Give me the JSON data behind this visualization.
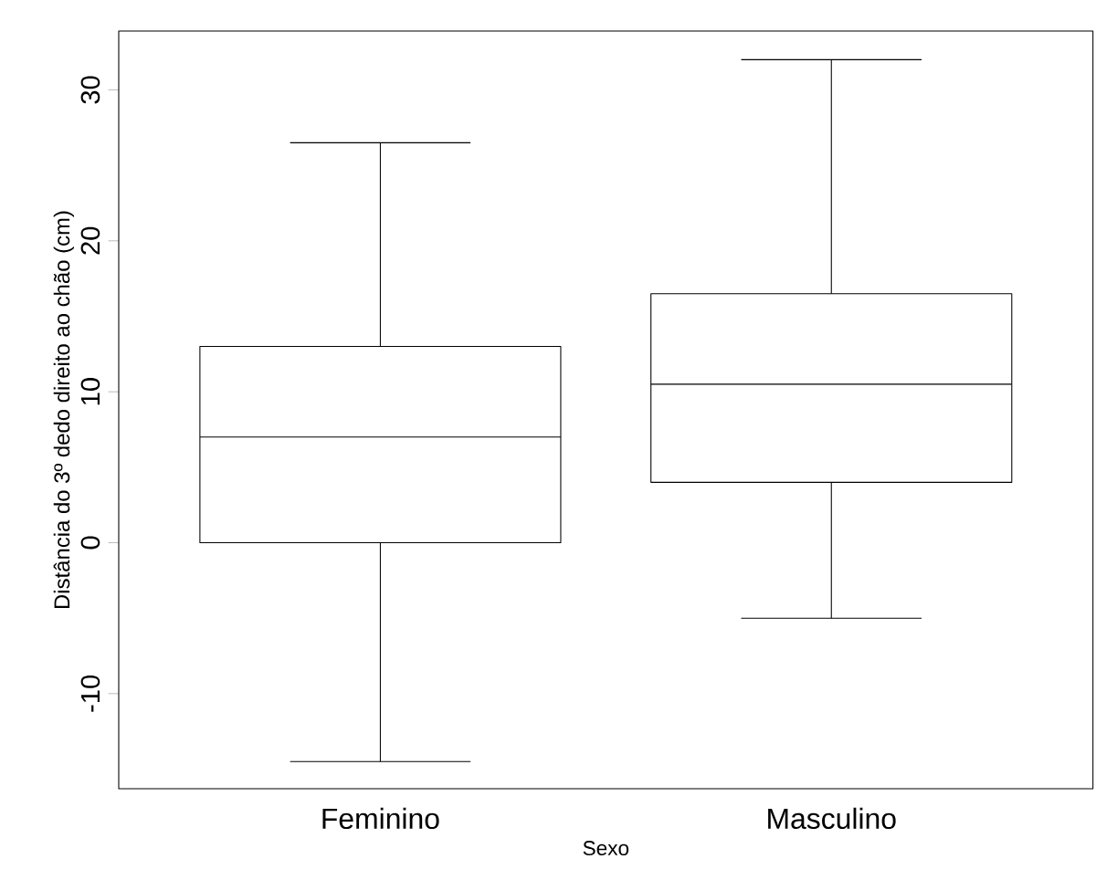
{
  "chart_data": {
    "type": "box",
    "xlabel": "Sexo",
    "ylabel": "Distância do 3º dedo direito ao chão (cm)",
    "categories": [
      "Feminino",
      "Masculino"
    ],
    "boxes": [
      {
        "low": -14.5,
        "q1": 0,
        "median": 7,
        "q3": 13,
        "high": 26.5
      },
      {
        "low": -5,
        "q1": 4,
        "median": 10.5,
        "q3": 16.5,
        "high": 32
      }
    ],
    "ylim": [
      -16.3,
      33.9
    ],
    "yticks": [
      -10,
      0,
      10,
      20,
      30
    ]
  }
}
